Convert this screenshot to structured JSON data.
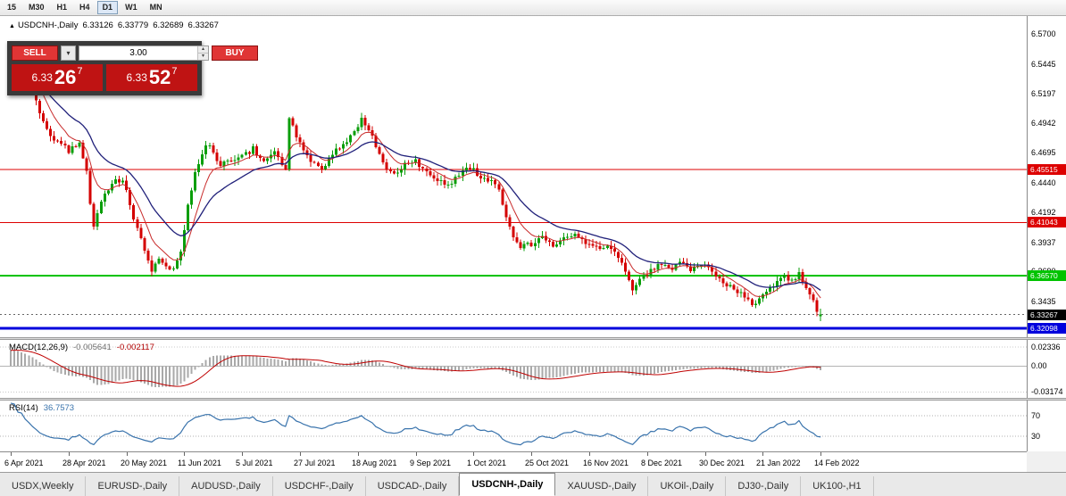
{
  "toolbar": {
    "timeframes": [
      {
        "label": "15",
        "active": false
      },
      {
        "label": "M30",
        "active": false
      },
      {
        "label": "H1",
        "active": false
      },
      {
        "label": "H4",
        "active": false
      },
      {
        "label": "D1",
        "active": true
      },
      {
        "label": "W1",
        "active": false
      },
      {
        "label": "MN",
        "active": false
      }
    ]
  },
  "chart_header": {
    "symbol": "USDCNH-,Daily",
    "open": "6.33126",
    "high": "6.33779",
    "low": "6.32689",
    "close": "6.33267"
  },
  "trade_panel": {
    "sell_label": "SELL",
    "buy_label": "BUY",
    "volume": "3.00",
    "sell_price": {
      "base": "6.33",
      "big": "26",
      "sup": "7"
    },
    "buy_price": {
      "base": "6.33",
      "big": "52",
      "sup": "7"
    }
  },
  "price_axis": {
    "labels": [
      {
        "text": "6.5700",
        "price": 6.57
      },
      {
        "text": "6.5445",
        "price": 6.5445
      },
      {
        "text": "6.5197",
        "price": 6.5197
      },
      {
        "text": "6.4942",
        "price": 6.4942
      },
      {
        "text": "6.4695",
        "price": 6.4695
      },
      {
        "text": "6.4440",
        "price": 6.444
      },
      {
        "text": "6.4192",
        "price": 6.4192
      },
      {
        "text": "6.3937",
        "price": 6.3937
      },
      {
        "text": "6.3690",
        "price": 6.369
      },
      {
        "text": "6.3435",
        "price": 6.3435
      }
    ],
    "badges": [
      {
        "text": "6.45515",
        "price": 6.45515,
        "color": "#dd0000",
        "text_color": "#ffffff"
      },
      {
        "text": "6.41043",
        "price": 6.41043,
        "color": "#dd0000",
        "text_color": "#ffffff"
      },
      {
        "text": "6.36570",
        "price": 6.3657,
        "color": "#00c300",
        "text_color": "#ffffff"
      },
      {
        "text": "6.33267",
        "price": 6.33267,
        "color": "#000000",
        "text_color": "#ffffff"
      },
      {
        "text": "6.32098",
        "price": 6.32098,
        "color": "#0000dd",
        "text_color": "#ffffff"
      }
    ]
  },
  "macd_pane": {
    "label": "MACD(12,26,9)",
    "value_main": "-0.005641",
    "value_signal": "-0.002117",
    "axis": [
      {
        "text": "0.02336",
        "value": 0.02336
      },
      {
        "text": "0.00",
        "value": 0
      },
      {
        "text": "-0.03174",
        "value": -0.03174
      }
    ]
  },
  "rsi_pane": {
    "label": "RSI(14)",
    "value": "36.7573",
    "axis": [
      {
        "text": "70",
        "value": 70
      },
      {
        "text": "30",
        "value": 30
      }
    ]
  },
  "date_axis": [
    "6 Apr 2021",
    "28 Apr 2021",
    "20 May 2021",
    "11 Jun 2021",
    "5 Jul 2021",
    "27 Jul 2021",
    "18 Aug 2021",
    "9 Sep 2021",
    "1 Oct 2021",
    "25 Oct 2021",
    "16 Nov 2021",
    "8 Dec 2021",
    "30 Dec 2021",
    "21 Jan 2022",
    "14 Feb 2022"
  ],
  "tabs": [
    {
      "label": "USDX,Weekly",
      "active": false
    },
    {
      "label": "EURUSD-,Daily",
      "active": false
    },
    {
      "label": "AUDUSD-,Daily",
      "active": false
    },
    {
      "label": "USDCHF-,Daily",
      "active": false
    },
    {
      "label": "USDCAD-,Daily",
      "active": false
    },
    {
      "label": "USDCNH-,Daily",
      "active": true
    },
    {
      "label": "XAUUSD-,Daily",
      "active": false
    },
    {
      "label": "UKOil-,Daily",
      "active": false
    },
    {
      "label": "DJ30-,Daily",
      "active": false
    },
    {
      "label": "UK100-,H1",
      "active": false
    }
  ],
  "chart_data": {
    "type": "candlestick",
    "symbol": "USDCNH",
    "timeframe": "Daily",
    "x_range": [
      "6 Apr 2021",
      "14 Feb 2022"
    ],
    "x_tick_step_candles": 16,
    "candle_count": 225,
    "price_range": [
      6.3135,
      6.585
    ],
    "last_candle": {
      "open": 6.33126,
      "high": 6.33779,
      "low": 6.32689,
      "close": 6.33267
    },
    "levels": [
      {
        "price": 6.45515,
        "color": "#dd0000",
        "width": 1
      },
      {
        "price": 6.41043,
        "color": "#dd0000",
        "width": 1
      },
      {
        "price": 6.3657,
        "color": "#00c300",
        "width": 2
      },
      {
        "price": 6.32098,
        "color": "#0000dd",
        "width": 3
      }
    ],
    "close_anchors": [
      [
        -30,
        6.452
      ],
      [
        -24,
        6.47
      ],
      [
        -18,
        6.498
      ],
      [
        -12,
        6.52
      ],
      [
        -6,
        6.54
      ],
      [
        0,
        6.556
      ],
      [
        3,
        6.542
      ],
      [
        6,
        6.521
      ],
      [
        9,
        6.494
      ],
      [
        12,
        6.481
      ],
      [
        16,
        6.471
      ],
      [
        19,
        6.477
      ],
      [
        21,
        6.452
      ],
      [
        22,
        6.425
      ],
      [
        23,
        6.408
      ],
      [
        25,
        6.428
      ],
      [
        28,
        6.443
      ],
      [
        31,
        6.448
      ],
      [
        33,
        6.425
      ],
      [
        35,
        6.405
      ],
      [
        37,
        6.385
      ],
      [
        39,
        6.369
      ],
      [
        41,
        6.38
      ],
      [
        43,
        6.374
      ],
      [
        45,
        6.371
      ],
      [
        47,
        6.385
      ],
      [
        49,
        6.425
      ],
      [
        51,
        6.452
      ],
      [
        54,
        6.477
      ],
      [
        56,
        6.47
      ],
      [
        58,
        6.458
      ],
      [
        61,
        6.463
      ],
      [
        64,
        6.466
      ],
      [
        67,
        6.473
      ],
      [
        70,
        6.461
      ],
      [
        73,
        6.47
      ],
      [
        76,
        6.455
      ],
      [
        77,
        6.5
      ],
      [
        78,
        6.492
      ],
      [
        80,
        6.477
      ],
      [
        83,
        6.461
      ],
      [
        86,
        6.455
      ],
      [
        89,
        6.469
      ],
      [
        92,
        6.477
      ],
      [
        95,
        6.487
      ],
      [
        97,
        6.497
      ],
      [
        100,
        6.483
      ],
      [
        103,
        6.459
      ],
      [
        106,
        6.452
      ],
      [
        109,
        6.459
      ],
      [
        112,
        6.462
      ],
      [
        115,
        6.455
      ],
      [
        118,
        6.447
      ],
      [
        121,
        6.441
      ],
      [
        124,
        6.451
      ],
      [
        127,
        6.457
      ],
      [
        130,
        6.449
      ],
      [
        133,
        6.446
      ],
      [
        135,
        6.437
      ],
      [
        137,
        6.415
      ],
      [
        139,
        6.398
      ],
      [
        141,
        6.39
      ],
      [
        144,
        6.392
      ],
      [
        147,
        6.398
      ],
      [
        150,
        6.389
      ],
      [
        153,
        6.396
      ],
      [
        156,
        6.402
      ],
      [
        159,
        6.394
      ],
      [
        162,
        6.389
      ],
      [
        165,
        6.392
      ],
      [
        168,
        6.381
      ],
      [
        170,
        6.368
      ],
      [
        172,
        6.351
      ],
      [
        174,
        6.361
      ],
      [
        176,
        6.368
      ],
      [
        179,
        6.375
      ],
      [
        182,
        6.371
      ],
      [
        185,
        6.376
      ],
      [
        188,
        6.371
      ],
      [
        191,
        6.376
      ],
      [
        194,
        6.368
      ],
      [
        197,
        6.36
      ],
      [
        200,
        6.354
      ],
      [
        203,
        6.347
      ],
      [
        206,
        6.34
      ],
      [
        208,
        6.349
      ],
      [
        211,
        6.358
      ],
      [
        214,
        6.365
      ],
      [
        216,
        6.361
      ],
      [
        218,
        6.367
      ],
      [
        220,
        6.356
      ],
      [
        222,
        6.344
      ],
      [
        223,
        6.337
      ],
      [
        224,
        6.33267
      ]
    ],
    "indicators": {
      "macd": {
        "params": [
          12,
          26,
          9
        ],
        "last_main": -0.005641,
        "last_signal": -0.002117,
        "range": [
          0.032,
          -0.039
        ]
      },
      "rsi": {
        "params": [
          14
        ],
        "last": 36.7573,
        "range": [
          0,
          100
        ],
        "levels": [
          70,
          30
        ]
      }
    },
    "colors": {
      "up": "#0a9e0a",
      "down": "#d40000",
      "ma_fast": "#c82a2a",
      "ma_slow": "#20207a",
      "macd_hist": "#a9a9a9",
      "macd_signal": "#bf0000",
      "rsi_line": "#3973ac"
    }
  }
}
